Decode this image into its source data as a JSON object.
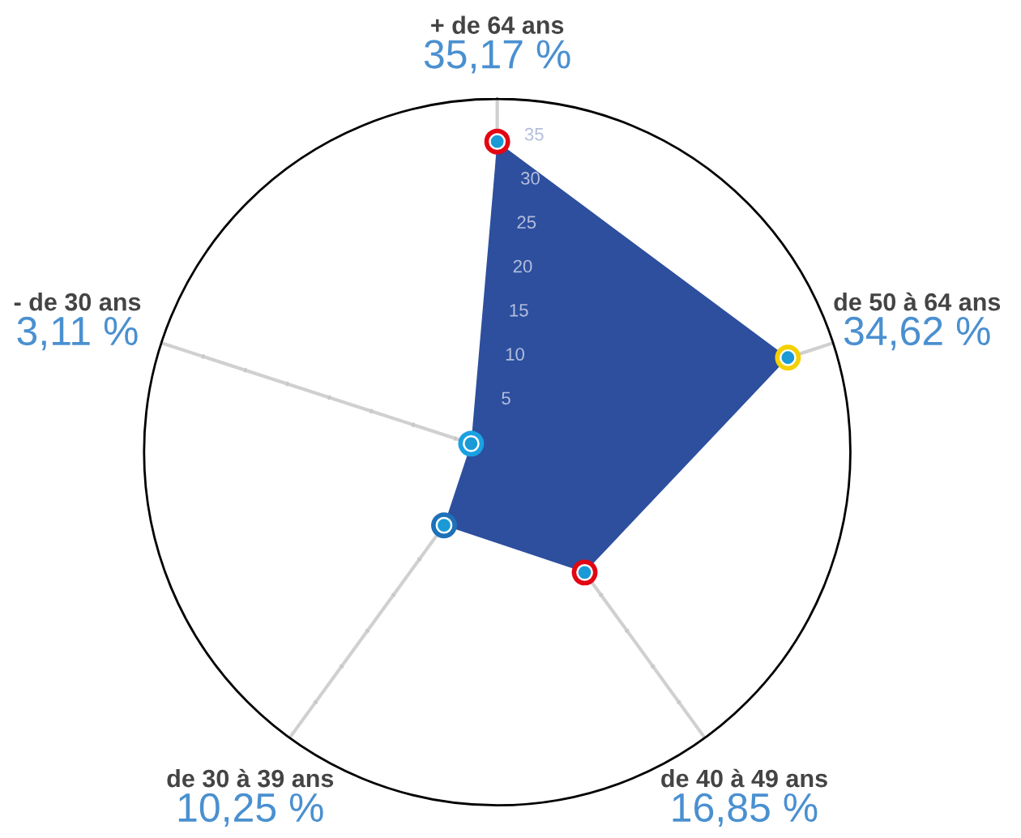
{
  "chart_data": {
    "type": "radar",
    "categories": [
      "+ de 64 ans",
      "de 50 à 64 ans",
      "de 40 à 49 ans",
      "de 30 à 39 ans",
      "- de 30 ans"
    ],
    "series": [
      {
        "color": "#2d4f9e",
        "values": [
          35.17,
          34.62,
          16.85,
          10.25,
          3.11
        ],
        "colors": [
          "#e30613",
          "#f5d000",
          "#e30613",
          "#1d71b8",
          "#1ba1e2"
        ]
      }
    ],
    "value_labels": [
      "35,17 %",
      "34,62 %",
      "16,85 %",
      "10,25 %",
      "3,11 %"
    ],
    "ylim": [
      0,
      40
    ],
    "yticks": [
      5,
      10,
      15,
      20,
      25,
      30,
      35
    ],
    "marker": "circle",
    "grid": false
  }
}
